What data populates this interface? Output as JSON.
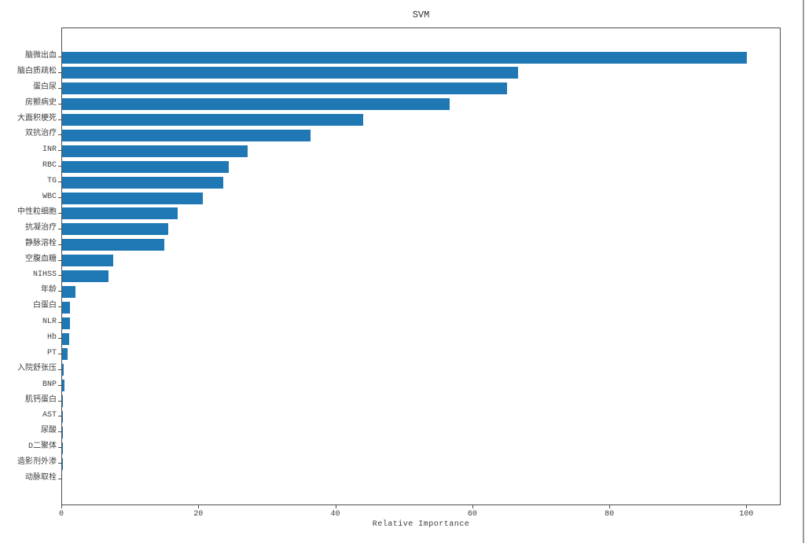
{
  "figure": {
    "title": "SVM",
    "xlabel": "Relative Importance"
  },
  "colors": {
    "bar": "#1f77b4",
    "text": "#3d3d3d",
    "spine": "#4d4d4d",
    "window_edge": "#9b9b9b"
  },
  "chart_data": {
    "type": "bar",
    "orientation": "horizontal",
    "title": "SVM",
    "xlabel": "Relative Importance",
    "ylabel": "",
    "xlim": [
      0,
      105
    ],
    "xticks": [
      0,
      20,
      40,
      60,
      80,
      100
    ],
    "grid": false,
    "legend": null,
    "bar_color": "#1f77b4",
    "categories": [
      "脑微出血",
      "脑白质疏松",
      "蛋白尿",
      "房颤病史",
      "大面积梗死",
      "双抗治疗",
      "INR",
      "RBC",
      "TG",
      "WBC",
      "中性粒细胞",
      "抗凝治疗",
      "静脉溶栓",
      "空腹血糖",
      "NIHSS",
      "年龄",
      "白蛋白",
      "NLR",
      "Hb",
      "PT",
      "入院舒张压",
      "BNP",
      "肌钙蛋白",
      "AST",
      "尿酸",
      "D二聚体",
      "造影剂外渗",
      "动脉取栓"
    ],
    "values": [
      100.0,
      66.6,
      64.9,
      56.6,
      44.0,
      36.3,
      27.1,
      24.3,
      23.5,
      20.5,
      16.9,
      15.5,
      14.9,
      7.5,
      6.8,
      2.0,
      1.2,
      1.1,
      1.0,
      0.8,
      0.25,
      0.35,
      0.05,
      0.03,
      0.02,
      0.02,
      0.01,
      0.0
    ]
  }
}
